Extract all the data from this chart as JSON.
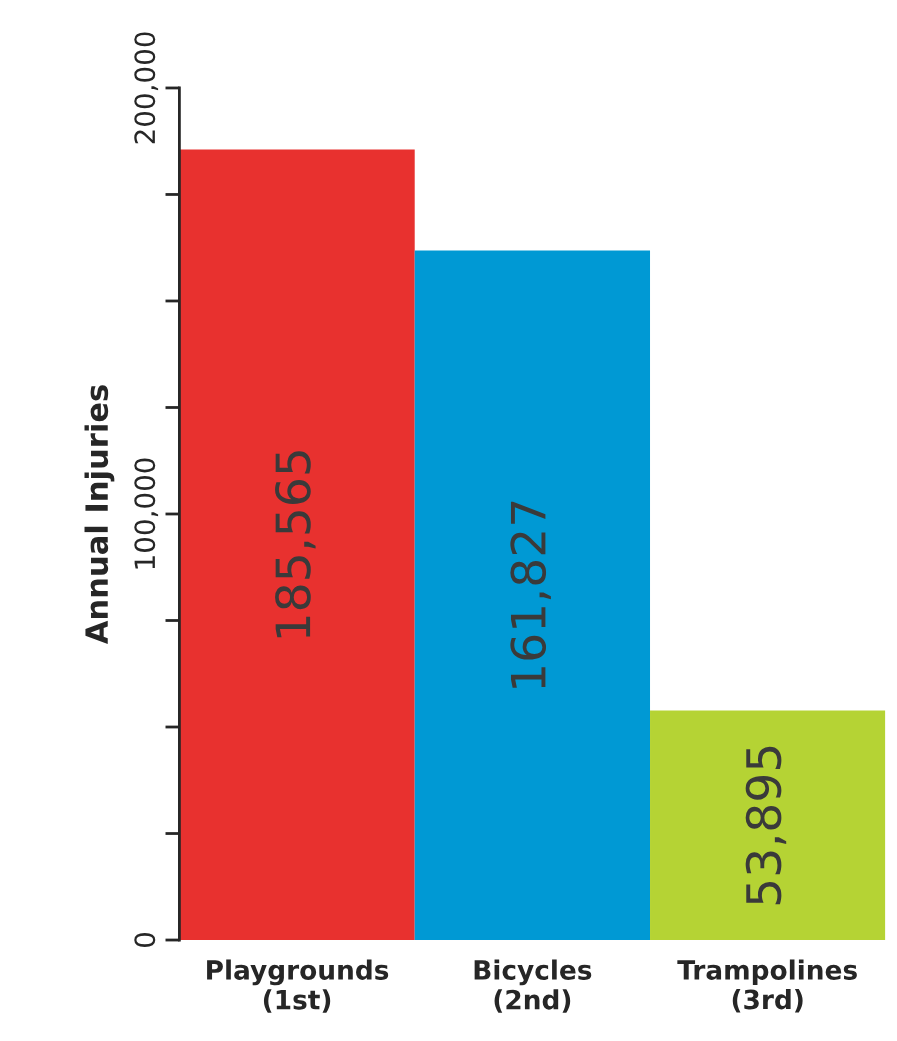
{
  "chart_data": {
    "type": "bar",
    "categories": [
      "Playgrounds\n(1st)",
      "Bicycles\n(2nd)",
      "Trampolines\n(3rd)"
    ],
    "values": [
      185565,
      161827,
      53895
    ],
    "colors": [
      "#e8312f",
      "#0099d4",
      "#b5d334"
    ],
    "value_labels": [
      "185,565",
      "161,827",
      "53,895"
    ],
    "ylabel": "Annual Injuries",
    "ylim": [
      0,
      200000
    ],
    "yticks": [
      0,
      {
        "value": 25000,
        "label": null
      },
      {
        "value": 50000,
        "label": null
      },
      {
        "value": 75000,
        "label": null
      },
      {
        "value": 100000,
        "label": "100,000"
      },
      {
        "value": 125000,
        "label": null
      },
      {
        "value": 150000,
        "label": null
      },
      {
        "value": 175000,
        "label": null
      },
      {
        "value": 200000,
        "label": "200,000"
      }
    ],
    "grid": false,
    "legend": false
  }
}
